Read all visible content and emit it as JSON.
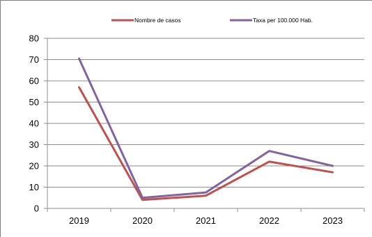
{
  "chart_data": {
    "type": "line",
    "title": "",
    "xlabel": "",
    "ylabel": "",
    "categories": [
      "2019",
      "2020",
      "2021",
      "2022",
      "2023"
    ],
    "ylim": [
      0,
      80
    ],
    "yticks": [
      "0",
      "10",
      "20",
      "30",
      "40",
      "50",
      "60",
      "70",
      "80"
    ],
    "grid": true,
    "legend_position": "top",
    "series": [
      {
        "name": "Nombre de casos",
        "color": "#c0504d",
        "values": [
          57,
          4,
          6,
          22,
          17
        ]
      },
      {
        "name": "Taxa per 100.000 Hab.",
        "color": "#8064a2",
        "values": [
          70.5,
          5,
          7.5,
          27,
          20
        ]
      }
    ]
  }
}
